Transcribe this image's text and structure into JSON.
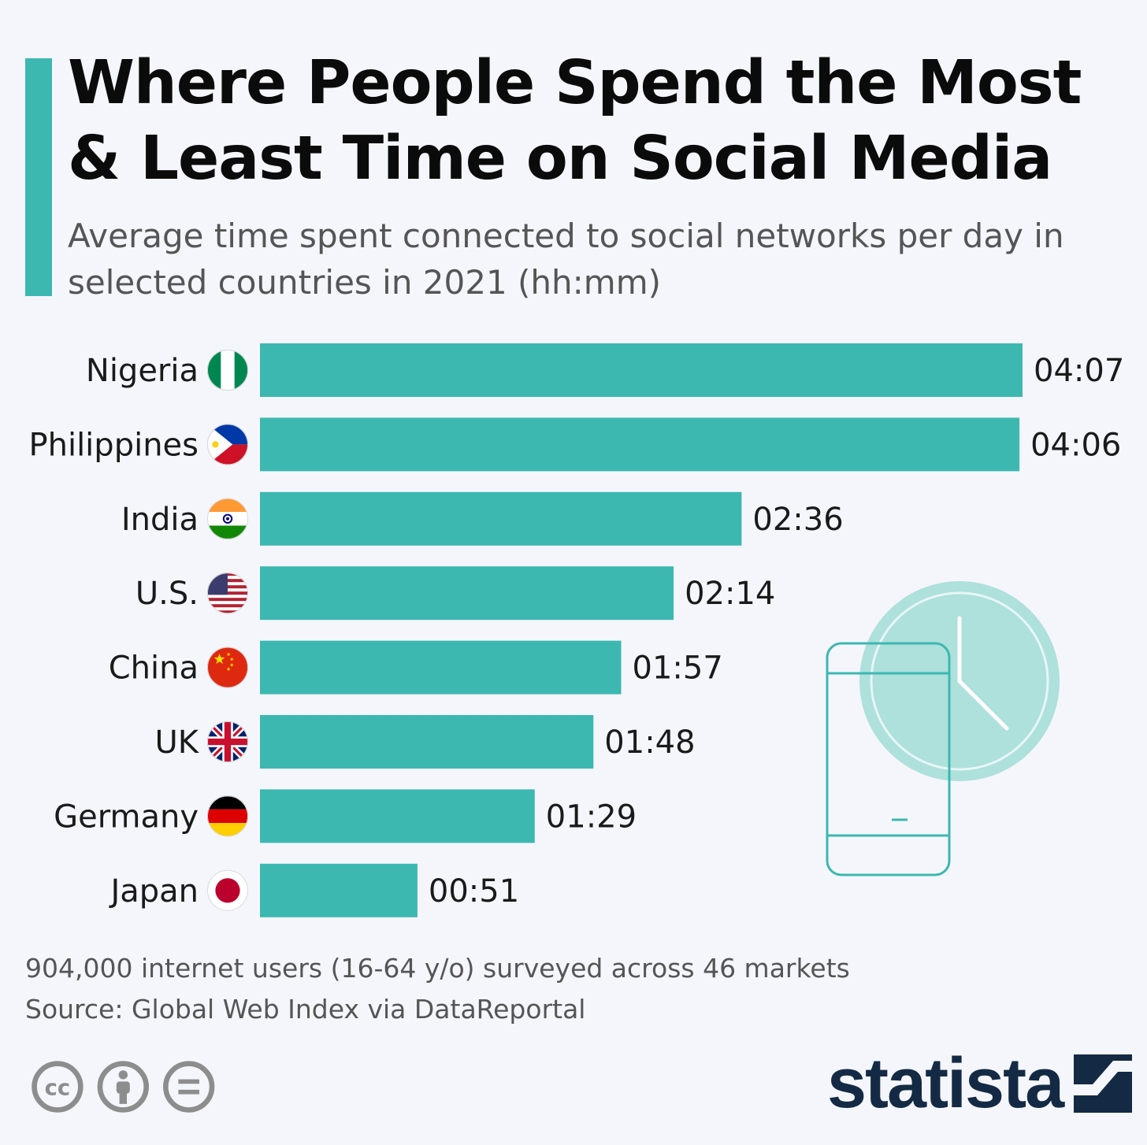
{
  "title": "Where People Spend the Most & Least Time on Social Media",
  "subtitle": "Average time spent connected to social networks per day in selected countries in 2021 (hh:mm)",
  "chart_data": {
    "type": "bar",
    "orientation": "horizontal",
    "title": "Where People Spend the Most & Least Time on Social Media",
    "subtitle": "Average time spent connected to social networks per day in selected countries in 2021 (hh:mm)",
    "xlabel": "",
    "ylabel": "",
    "unit": "minutes",
    "grid": false,
    "categories": [
      "Nigeria",
      "Philippines",
      "India",
      "U.S.",
      "China",
      "UK",
      "Germany",
      "Japan"
    ],
    "values": [
      247,
      246,
      156,
      134,
      117,
      108,
      89,
      51
    ],
    "value_labels": [
      "04:07",
      "04:06",
      "02:36",
      "02:14",
      "01:57",
      "01:48",
      "01:29",
      "00:51"
    ],
    "flags": [
      "nigeria-flag-icon",
      "philippines-flag-icon",
      "india-flag-icon",
      "us-flag-icon",
      "china-flag-icon",
      "uk-flag-icon",
      "germany-flag-icon",
      "japan-flag-icon"
    ],
    "xlim": [
      0,
      247
    ],
    "bar_color": "#3cb8b1"
  },
  "footnote": {
    "line1": "904,000 internet users (16-64 y/o) surveyed across 46 markets",
    "line2": "Source: Global Web Index via DataReportal"
  },
  "license_icons": [
    "creative-commons-icon",
    "attribution-icon",
    "no-derivatives-icon"
  ],
  "brand": {
    "name": "statista",
    "color": "#142a44"
  },
  "colors": {
    "accent": "#3cb8b1",
    "background": "#f5f6fb",
    "illustration": "#aee0dc"
  }
}
